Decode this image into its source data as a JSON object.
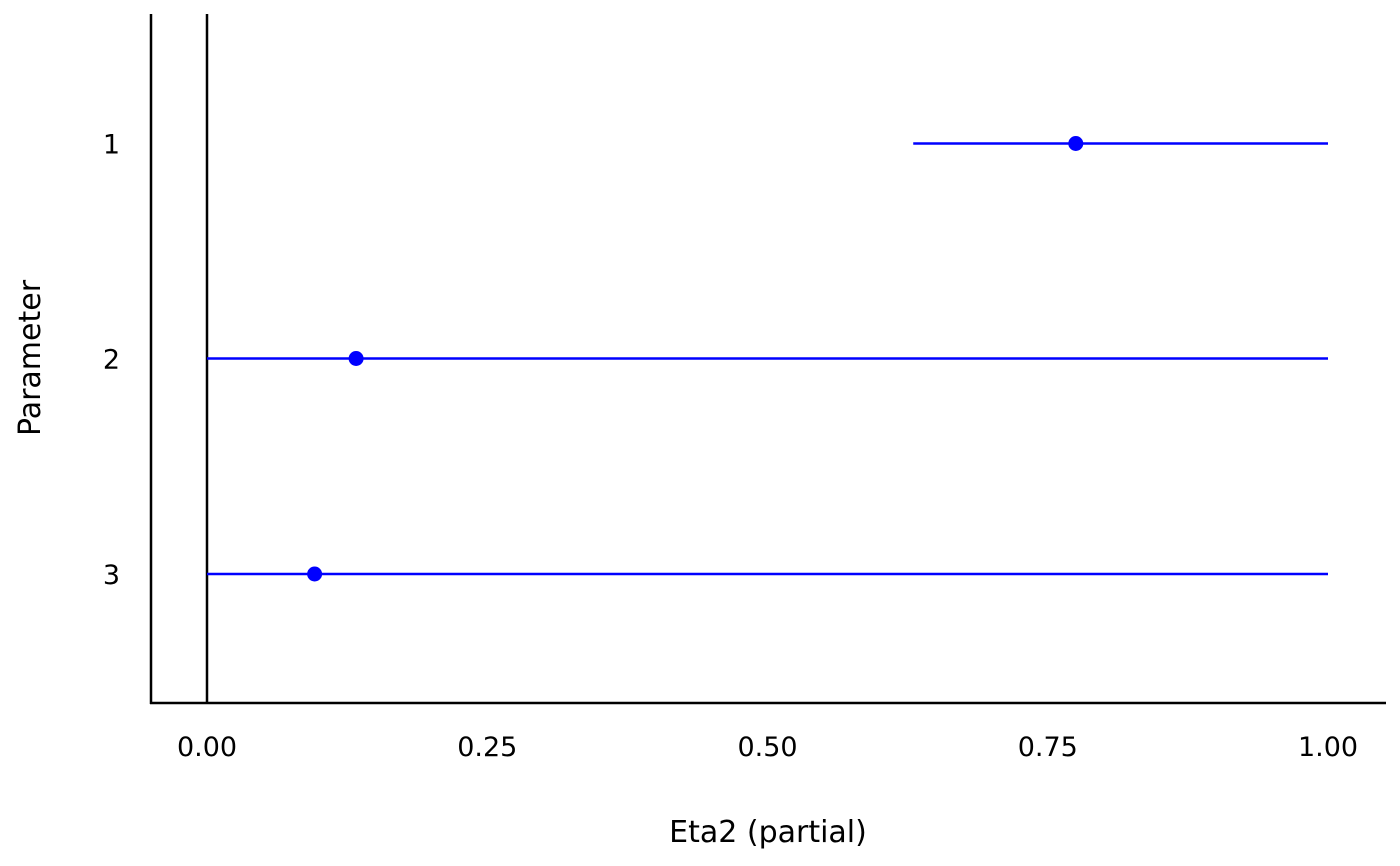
{
  "chart_data": {
    "type": "forest",
    "xlabel": "Eta2 (partial)",
    "ylabel": "Parameter",
    "xlim": [
      -0.05,
      1.05
    ],
    "x_ticks": [
      0.0,
      0.25,
      0.5,
      0.75,
      1.0
    ],
    "x_tick_labels": [
      "0.00",
      "0.25",
      "0.50",
      "0.75",
      "1.00"
    ],
    "reference_line": 0,
    "parameters": [
      {
        "label": "1",
        "estimate": 0.775,
        "ci_low": 0.63,
        "ci_high": 1.0
      },
      {
        "label": "2",
        "estimate": 0.133,
        "ci_low": 0.0,
        "ci_high": 1.0
      },
      {
        "label": "3",
        "estimate": 0.096,
        "ci_low": 0.0,
        "ci_high": 1.0
      }
    ],
    "color": "#0000ff",
    "grid": false
  }
}
